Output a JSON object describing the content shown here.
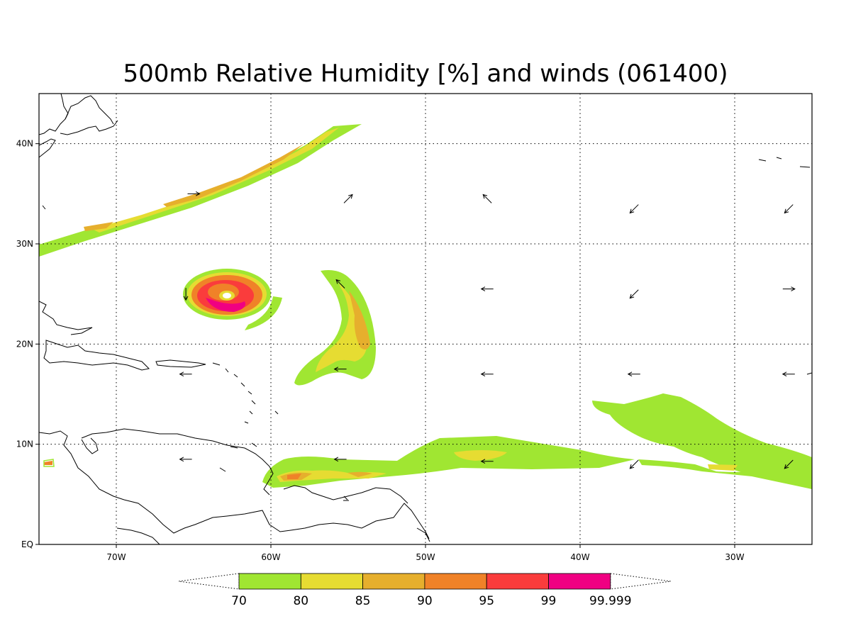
{
  "title": "500mb Relative Humidity [%] and winds (061400)",
  "colors": {
    "background": "#ffffff",
    "frame": "#000000",
    "level_70": "#a0e632",
    "level_80": "#e6dc32",
    "level_85": "#e6af2d",
    "level_90": "#f08228",
    "level_95": "#fa3c3c",
    "level_99": "#f00082"
  },
  "map": {
    "lon_range": [
      -75,
      -25
    ],
    "lat_range": [
      0,
      45
    ],
    "grid_lons": [
      -70,
      -60,
      -50,
      -40,
      -30
    ],
    "grid_lats": [
      10,
      20,
      30,
      40
    ],
    "x_tick_labels": [
      "70W",
      "60W",
      "50W",
      "40W",
      "30W"
    ],
    "y_tick_labels": [
      "EQ",
      "10N",
      "20N",
      "30N",
      "40N"
    ]
  },
  "colorbar": {
    "labels": [
      "70",
      "80",
      "85",
      "90",
      "95",
      "99",
      "99.999"
    ],
    "colors": [
      "#a0e632",
      "#e6dc32",
      "#e6af2d",
      "#f08228",
      "#fa3c3c",
      "#f00082"
    ]
  },
  "wind_vectors": [
    {
      "lon": -55,
      "lat": 34.5,
      "dir": "NE"
    },
    {
      "lon": -46,
      "lat": 34.5,
      "dir": "NW"
    },
    {
      "lon": -36.5,
      "lat": 33.5,
      "dir": "SW"
    },
    {
      "lon": -26.5,
      "lat": 33.5,
      "dir": "SW"
    },
    {
      "lon": -46,
      "lat": 25.5,
      "dir": "W"
    },
    {
      "lon": -36.5,
      "lat": 25.0,
      "dir": "SW"
    },
    {
      "lon": -26.5,
      "lat": 25.5,
      "dir": "E"
    },
    {
      "lon": -55.5,
      "lat": 26.0,
      "dir": "NW"
    },
    {
      "lon": -55.5,
      "lat": 17.5,
      "dir": "W"
    },
    {
      "lon": -46,
      "lat": 17.0,
      "dir": "W"
    },
    {
      "lon": -36.5,
      "lat": 17.0,
      "dir": "W"
    },
    {
      "lon": -26.5,
      "lat": 17.0,
      "dir": "W"
    },
    {
      "lon": -65.5,
      "lat": 17.0,
      "dir": "W"
    },
    {
      "lon": -65.5,
      "lat": 8.5,
      "dir": "W"
    },
    {
      "lon": -55.5,
      "lat": 8.5,
      "dir": "W"
    },
    {
      "lon": -46,
      "lat": 8.3,
      "dir": "W"
    },
    {
      "lon": -36.5,
      "lat": 8.0,
      "dir": "SW"
    },
    {
      "lon": -26.5,
      "lat": 8.0,
      "dir": "SW"
    },
    {
      "lon": -65,
      "lat": 35,
      "dir": "E"
    },
    {
      "lon": -65.5,
      "lat": 25.0,
      "dir": "S"
    }
  ]
}
